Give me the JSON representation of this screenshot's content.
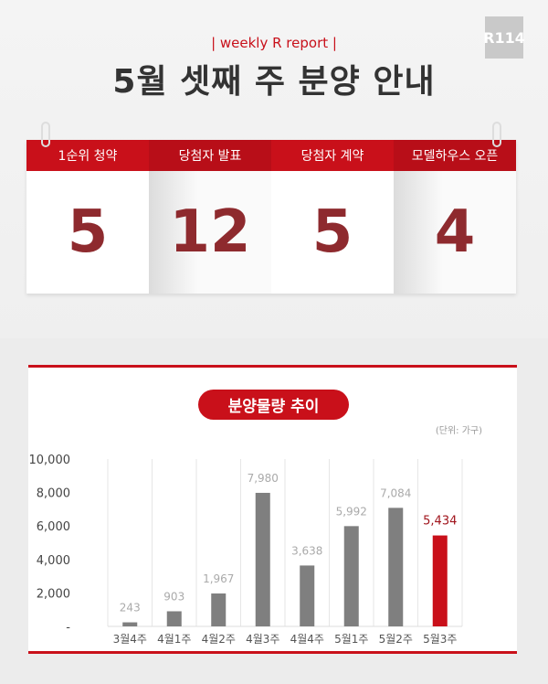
{
  "header": {
    "logo": "R114",
    "subtitle": "| weekly R report |",
    "title": "5월 셋째 주 분양 안내"
  },
  "cards": [
    {
      "label": "1순위 청약",
      "value": "5"
    },
    {
      "label": "당첨자 발표",
      "value": "12"
    },
    {
      "label": "당첨자 계약",
      "value": "5"
    },
    {
      "label": "모델하우스 오픈",
      "value": "4"
    }
  ],
  "chart_data": {
    "type": "bar",
    "title": "분양물량 추이",
    "unit": "(단위: 가구)",
    "categories": [
      "3월4주",
      "4월1주",
      "4월2주",
      "4월3주",
      "4월4주",
      "5월1주",
      "5월2주",
      "5월3주"
    ],
    "values": [
      243,
      903,
      1967,
      7980,
      3638,
      5992,
      7084,
      5434
    ],
    "labels": [
      "243",
      "903",
      "1,967",
      "7,980",
      "3,638",
      "5,992",
      "7,084",
      "5,434"
    ],
    "ylim": [
      0,
      10000
    ],
    "yticks": [
      "-",
      "2,000",
      "4,000",
      "6,000",
      "8,000",
      "10,000"
    ],
    "colors": {
      "default": "#7f7f7f",
      "highlight": "#c9101a",
      "highlight_label": "#a0141c"
    },
    "highlight_index": 7,
    "grid": "vertical"
  }
}
